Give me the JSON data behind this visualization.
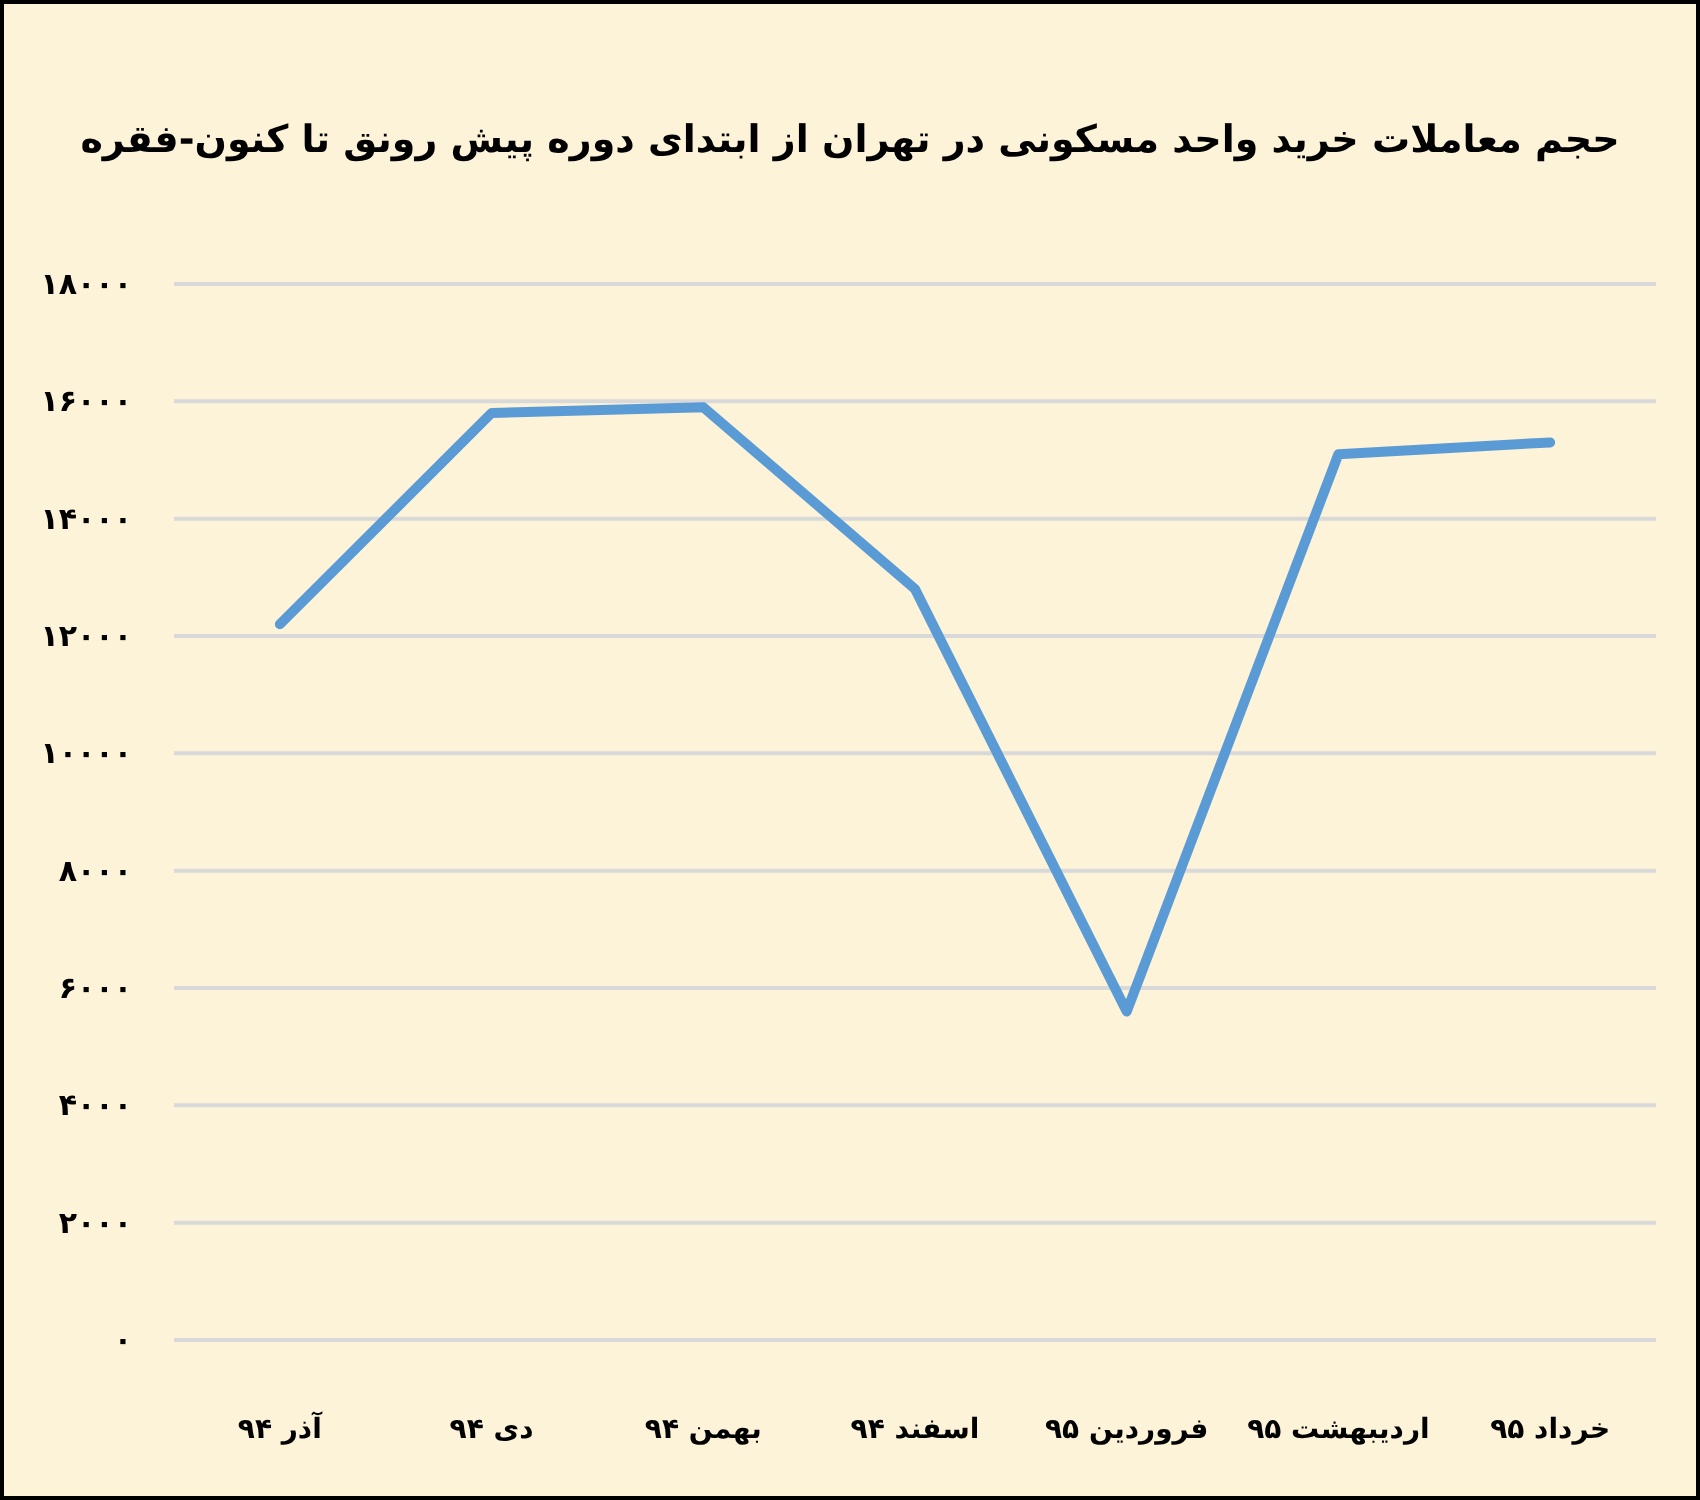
{
  "chart_data": {
    "type": "line",
    "title": "حجم معاملات خرید واحد مسکونی در تهران از ابتدای دوره پیش رونق تا کنون-فقره",
    "categories": [
      "آذر ۹۴",
      "دی ۹۴",
      "بهمن ۹۴",
      "اسفند ۹۴",
      "فروردین ۹۵",
      "اردیبهشت ۹۵",
      "خرداد ۹۵"
    ],
    "series": [
      {
        "color": "#5b9bd5",
        "values": [
          12200,
          15800,
          15900,
          12800,
          5600,
          15100,
          15300
        ]
      }
    ],
    "ylim": [
      0,
      18000
    ],
    "yticks": [
      {
        "value": 0,
        "label": "۰"
      },
      {
        "value": 2000,
        "label": "۲۰۰۰"
      },
      {
        "value": 4000,
        "label": "۴۰۰۰"
      },
      {
        "value": 6000,
        "label": "۶۰۰۰"
      },
      {
        "value": 8000,
        "label": "۸۰۰۰"
      },
      {
        "value": 10000,
        "label": "۱۰۰۰۰"
      },
      {
        "value": 12000,
        "label": "۱۲۰۰۰"
      },
      {
        "value": 14000,
        "label": "۱۴۰۰۰"
      },
      {
        "value": 16000,
        "label": "۱۶۰۰۰"
      },
      {
        "value": 18000,
        "label": "۱۸۰۰۰"
      }
    ],
    "grid": "y",
    "marker": "none",
    "line_style": "solid"
  }
}
